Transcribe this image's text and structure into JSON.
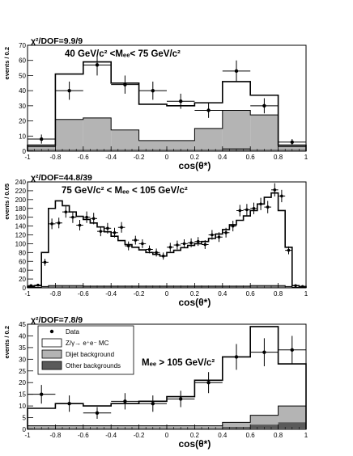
{
  "chart_data": [
    {
      "type": "bar",
      "fit_label": "χ²/DOF=9.9/9",
      "annotation": "40 GeV/c² <Mₑₑ< 75 GeV/c²",
      "ylabel": "events / 0.2",
      "xlabel": "cos(θ*)",
      "xlim": [
        -1,
        1
      ],
      "ylim": [
        0,
        70
      ],
      "yticks": [
        0,
        10,
        20,
        30,
        40,
        50,
        60,
        70
      ],
      "xticks": [
        -1,
        -0.8,
        -0.6,
        -0.4,
        -0.2,
        0,
        0.2,
        0.4,
        0.6,
        0.8,
        1
      ],
      "bin_edges": [
        -1,
        -0.8,
        -0.6,
        -0.4,
        -0.2,
        0,
        0.2,
        0.4,
        0.6,
        0.8,
        1
      ],
      "mc_total": [
        4,
        51,
        59,
        45,
        31,
        30,
        32,
        46,
        37,
        4
      ],
      "dijet": [
        2,
        20,
        21,
        13,
        6,
        6,
        14,
        25,
        23,
        2
      ],
      "other": [
        1,
        1,
        1,
        1,
        1,
        1,
        1,
        2,
        1,
        1
      ],
      "data": [
        {
          "x": -0.9,
          "y": 8,
          "err": 3
        },
        {
          "x": -0.7,
          "y": 40,
          "err": 6
        },
        {
          "x": -0.5,
          "y": 57,
          "err": 7
        },
        {
          "x": -0.3,
          "y": 44,
          "err": 6
        },
        {
          "x": -0.1,
          "y": 40,
          "err": 6
        },
        {
          "x": 0.1,
          "y": 33,
          "err": 5
        },
        {
          "x": 0.3,
          "y": 27,
          "err": 5
        },
        {
          "x": 0.5,
          "y": 53,
          "err": 7
        },
        {
          "x": 0.7,
          "y": 30,
          "err": 5
        },
        {
          "x": 0.9,
          "y": 6,
          "err": 2
        }
      ]
    },
    {
      "type": "bar",
      "fit_label": "χ²/DOF=44.8/39",
      "annotation": "75 GeV/c² < Mₑₑ < 105 GeV/c²",
      "ylabel": "events / 0.05",
      "xlabel": "cos(θ*)",
      "xlim": [
        -1,
        1
      ],
      "ylim": [
        0,
        240
      ],
      "yticks": [
        0,
        20,
        40,
        60,
        80,
        100,
        120,
        140,
        160,
        180,
        200,
        220,
        240
      ],
      "xticks": [
        -1,
        -0.8,
        -0.6,
        -0.4,
        -0.2,
        0,
        0.2,
        0.4,
        0.6,
        0.8,
        1
      ],
      "bin_edges": [
        -1,
        -0.95,
        -0.9,
        -0.85,
        -0.8,
        -0.75,
        -0.7,
        -0.65,
        -0.6,
        -0.55,
        -0.5,
        -0.45,
        -0.4,
        -0.35,
        -0.3,
        -0.25,
        -0.2,
        -0.15,
        -0.1,
        -0.05,
        0,
        0.05,
        0.1,
        0.15,
        0.2,
        0.25,
        0.3,
        0.35,
        0.4,
        0.45,
        0.5,
        0.55,
        0.6,
        0.65,
        0.7,
        0.75,
        0.8,
        0.85,
        0.9,
        0.95,
        1
      ],
      "mc_total": [
        3,
        5,
        80,
        180,
        197,
        186,
        172,
        162,
        155,
        147,
        138,
        127,
        117,
        107,
        98,
        92,
        86,
        80,
        76,
        72,
        80,
        85,
        91,
        96,
        100,
        105,
        112,
        122,
        132,
        143,
        153,
        163,
        175,
        190,
        205,
        215,
        175,
        92,
        5,
        3
      ],
      "dijet": [
        0,
        0,
        1,
        2,
        2,
        2,
        2,
        2,
        1,
        1,
        1,
        1,
        1,
        1,
        1,
        1,
        1,
        1,
        1,
        1,
        1,
        1,
        1,
        1,
        1,
        1,
        1,
        1,
        1,
        1,
        1,
        1,
        2,
        2,
        2,
        2,
        2,
        1,
        0,
        0
      ],
      "other": [
        1,
        1,
        2,
        3,
        3,
        3,
        3,
        3,
        3,
        3,
        3,
        3,
        3,
        3,
        3,
        3,
        3,
        3,
        3,
        3,
        3,
        3,
        3,
        3,
        3,
        3,
        3,
        3,
        3,
        3,
        3,
        3,
        3,
        3,
        3,
        3,
        3,
        2,
        1,
        1
      ],
      "data": [
        {
          "x": -0.975,
          "y": 5,
          "err": 2
        },
        {
          "x": -0.925,
          "y": 6,
          "err": 2
        },
        {
          "x": -0.875,
          "y": 58,
          "err": 8
        },
        {
          "x": -0.825,
          "y": 145,
          "err": 12
        },
        {
          "x": -0.775,
          "y": 147,
          "err": 12
        },
        {
          "x": -0.725,
          "y": 172,
          "err": 13
        },
        {
          "x": -0.675,
          "y": 160,
          "err": 13
        },
        {
          "x": -0.625,
          "y": 142,
          "err": 12
        },
        {
          "x": -0.575,
          "y": 160,
          "err": 13
        },
        {
          "x": -0.525,
          "y": 157,
          "err": 13
        },
        {
          "x": -0.475,
          "y": 128,
          "err": 11
        },
        {
          "x": -0.425,
          "y": 135,
          "err": 12
        },
        {
          "x": -0.375,
          "y": 125,
          "err": 11
        },
        {
          "x": -0.325,
          "y": 137,
          "err": 12
        },
        {
          "x": -0.275,
          "y": 95,
          "err": 10
        },
        {
          "x": -0.225,
          "y": 108,
          "err": 10
        },
        {
          "x": -0.175,
          "y": 100,
          "err": 10
        },
        {
          "x": -0.125,
          "y": 87,
          "err": 9
        },
        {
          "x": -0.075,
          "y": 80,
          "err": 9
        },
        {
          "x": -0.025,
          "y": 72,
          "err": 8
        },
        {
          "x": 0.025,
          "y": 92,
          "err": 10
        },
        {
          "x": 0.075,
          "y": 97,
          "err": 10
        },
        {
          "x": 0.125,
          "y": 100,
          "err": 10
        },
        {
          "x": 0.175,
          "y": 102,
          "err": 10
        },
        {
          "x": 0.225,
          "y": 105,
          "err": 10
        },
        {
          "x": 0.275,
          "y": 98,
          "err": 10
        },
        {
          "x": 0.325,
          "y": 120,
          "err": 11
        },
        {
          "x": 0.375,
          "y": 115,
          "err": 11
        },
        {
          "x": 0.425,
          "y": 125,
          "err": 11
        },
        {
          "x": 0.475,
          "y": 140,
          "err": 12
        },
        {
          "x": 0.525,
          "y": 175,
          "err": 13
        },
        {
          "x": 0.575,
          "y": 177,
          "err": 13
        },
        {
          "x": 0.625,
          "y": 180,
          "err": 13
        },
        {
          "x": 0.675,
          "y": 190,
          "err": 14
        },
        {
          "x": 0.725,
          "y": 183,
          "err": 14
        },
        {
          "x": 0.775,
          "y": 222,
          "err": 15
        },
        {
          "x": 0.825,
          "y": 208,
          "err": 14
        },
        {
          "x": 0.875,
          "y": 85,
          "err": 9
        },
        {
          "x": 0.925,
          "y": 5,
          "err": 2
        },
        {
          "x": 0.975,
          "y": 3,
          "err": 2
        }
      ]
    },
    {
      "type": "bar",
      "fit_label": "χ²/DOF=7.8/9",
      "annotation": "Mₑₑ > 105 GeV/c²",
      "ylabel": "events / 0.2",
      "xlabel": "cos(θ*)",
      "xlim": [
        -1,
        1
      ],
      "ylim": [
        0,
        45
      ],
      "yticks": [
        0,
        5,
        10,
        15,
        20,
        25,
        30,
        35,
        40,
        45
      ],
      "xticks": [
        -1,
        -0.8,
        -0.6,
        -0.4,
        -0.2,
        0,
        0.2,
        0.4,
        0.6,
        0.8,
        1
      ],
      "bin_edges": [
        -1,
        -0.8,
        -0.6,
        -0.4,
        -0.2,
        0,
        0.2,
        0.4,
        0.6,
        0.8,
        1
      ],
      "mc_total": [
        9,
        11,
        10,
        11,
        12,
        14,
        21,
        31,
        44,
        28
      ],
      "dijet": [
        1,
        1,
        1,
        1,
        1,
        1,
        1,
        2,
        4,
        7
      ],
      "other": [
        0.5,
        0.5,
        0.5,
        0.5,
        0.5,
        0.5,
        0.5,
        1,
        2,
        3
      ],
      "data": [
        {
          "x": -0.9,
          "y": 15,
          "err": 4
        },
        {
          "x": -0.7,
          "y": 11,
          "err": 3.5
        },
        {
          "x": -0.5,
          "y": 7,
          "err": 2.5
        },
        {
          "x": -0.3,
          "y": 12,
          "err": 3.5
        },
        {
          "x": -0.1,
          "y": 11,
          "err": 3.5
        },
        {
          "x": 0.1,
          "y": 13,
          "err": 3.5
        },
        {
          "x": 0.3,
          "y": 20,
          "err": 4.5
        },
        {
          "x": 0.5,
          "y": 31,
          "err": 5.5
        },
        {
          "x": 0.7,
          "y": 33,
          "err": 6
        },
        {
          "x": 0.9,
          "y": 34,
          "err": 6
        }
      ],
      "legend": {
        "placement": "top-left",
        "entries": [
          {
            "label": "Data",
            "style": "marker"
          },
          {
            "label": "Z/γ→ e⁺e⁻ MC",
            "style": "open-box"
          },
          {
            "label": "Dijet background",
            "style": "light-gray-box"
          },
          {
            "label": "Other backgrounds",
            "style": "dark-gray-box"
          }
        ]
      }
    }
  ],
  "colors": {
    "dijet_fill": "#b4b4b4",
    "other_fill": "#5a5a5a",
    "line": "#000000"
  }
}
